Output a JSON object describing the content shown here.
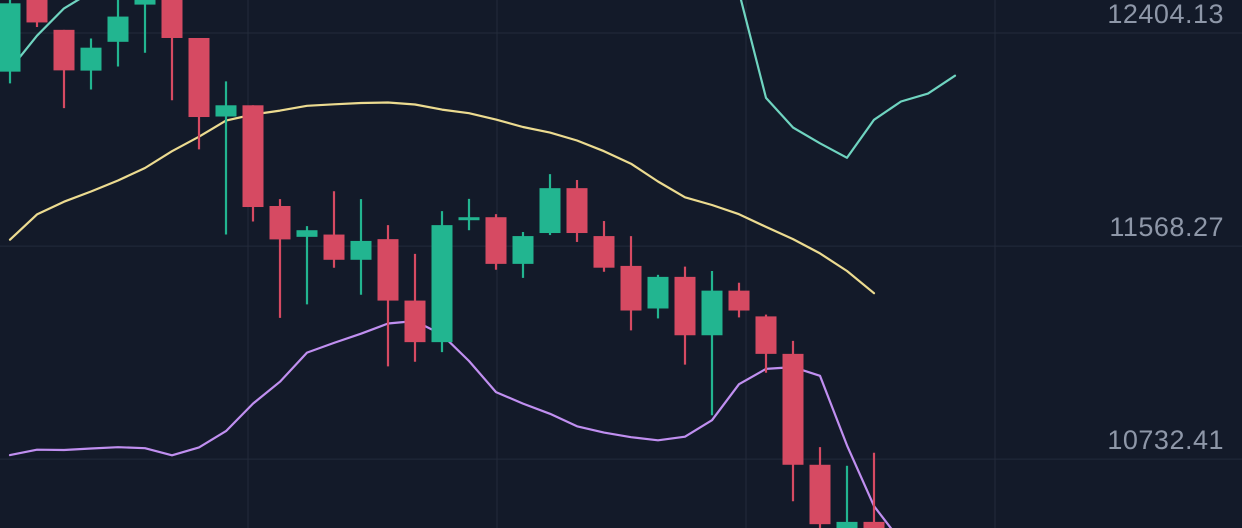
{
  "chart_data": {
    "type": "candlestick",
    "y_axis": {
      "range": [
        10384,
        12455
      ],
      "tick_labels": [
        "12404.13",
        "11568.27",
        "10732.41"
      ],
      "ticks": [
        12404.13,
        11568.27,
        10732.41
      ]
    },
    "grid": true,
    "colors": {
      "background": "#131a29",
      "grid": "#232b3b",
      "up": "#22b590",
      "down": "#d64a62",
      "upper_band": "#6fd4c0",
      "middle_band": "#ecdb90",
      "lower_band": "#c08ff0",
      "axis_text": "#8e97a8"
    },
    "candles": [
      {
        "dir": "up",
        "open": 12174,
        "close": 12442,
        "high": 12460,
        "low": 12128
      },
      {
        "dir": "down",
        "open": 12460,
        "close": 12367,
        "high": 12460,
        "low": 12349
      },
      {
        "dir": "down",
        "open": 12338,
        "close": 12179,
        "high": 12338,
        "low": 12031
      },
      {
        "dir": "up",
        "open": 12178,
        "close": 12268,
        "high": 12304,
        "low": 12104
      },
      {
        "dir": "up",
        "open": 12291,
        "close": 12390,
        "high": 12460,
        "low": 12194
      },
      {
        "dir": "up",
        "open": 12437,
        "close": 12459,
        "high": 12460,
        "low": 12248
      },
      {
        "dir": "down",
        "open": 12460,
        "close": 12306,
        "high": 12460,
        "low": 12062
      },
      {
        "dir": "down",
        "open": 12306,
        "close": 11996,
        "high": 12306,
        "low": 11869
      },
      {
        "dir": "up",
        "open": 11998,
        "close": 12042,
        "high": 12136,
        "low": 11535
      },
      {
        "dir": "down",
        "open": 12042,
        "close": 11643,
        "high": 12042,
        "low": 11586
      },
      {
        "dir": "down",
        "open": 11647,
        "close": 11516,
        "high": 11674,
        "low": 11208
      },
      {
        "dir": "up",
        "open": 11526,
        "close": 11552,
        "high": 11568,
        "low": 11261
      },
      {
        "dir": "down",
        "open": 11535,
        "close": 11436,
        "high": 11705,
        "low": 11405
      },
      {
        "dir": "up",
        "open": 11436,
        "close": 11510,
        "high": 11674,
        "low": 11299
      },
      {
        "dir": "down",
        "open": 11517,
        "close": 11276,
        "high": 11572,
        "low": 11018
      },
      {
        "dir": "down",
        "open": 11276,
        "close": 11113,
        "high": 11459,
        "low": 11036
      },
      {
        "dir": "up",
        "open": 11113,
        "close": 11572,
        "high": 11627,
        "low": 11074
      },
      {
        "dir": "up",
        "open": 11595,
        "close": 11603,
        "high": 11675,
        "low": 11552
      },
      {
        "dir": "down",
        "open": 11603,
        "close": 11420,
        "high": 11615,
        "low": 11397
      },
      {
        "dir": "up",
        "open": 11420,
        "close": 11529,
        "high": 11545,
        "low": 11365
      },
      {
        "dir": "up",
        "open": 11541,
        "close": 11717,
        "high": 11772,
        "low": 11533
      },
      {
        "dir": "down",
        "open": 11717,
        "close": 11541,
        "high": 11749,
        "low": 11506
      },
      {
        "dir": "down",
        "open": 11529,
        "close": 11405,
        "high": 11588,
        "low": 11389
      },
      {
        "dir": "down",
        "open": 11412,
        "close": 11237,
        "high": 11529,
        "low": 11159
      },
      {
        "dir": "up",
        "open": 11245,
        "close": 11369,
        "high": 11377,
        "low": 11206
      },
      {
        "dir": "down",
        "open": 11369,
        "close": 11140,
        "high": 11409,
        "low": 11025
      },
      {
        "dir": "up",
        "open": 11140,
        "close": 11315,
        "high": 11392,
        "low": 10826
      },
      {
        "dir": "down",
        "open": 11315,
        "close": 11237,
        "high": 11346,
        "low": 11210
      },
      {
        "dir": "down",
        "open": 11214,
        "close": 11067,
        "high": 11221,
        "low": 10993
      },
      {
        "dir": "down",
        "open": 11067,
        "close": 10632,
        "high": 11118,
        "low": 10489
      },
      {
        "dir": "down",
        "open": 10632,
        "close": 10399,
        "high": 10701,
        "low": 10384
      },
      {
        "dir": "up",
        "open": 10384,
        "close": 10408,
        "high": 10628,
        "low": 10384
      },
      {
        "dir": "down",
        "open": 10408,
        "close": 10384,
        "high": 10679,
        "low": 10384
      }
    ],
    "bands": {
      "upper_a": [
        12183,
        12315,
        12422,
        12486
      ],
      "upper_b": [
        12486,
        12071,
        11955,
        11893,
        11836,
        11985,
        12057,
        12088,
        12158
      ],
      "middle": [
        11515,
        11614,
        11664,
        11704,
        11747,
        11796,
        11862,
        11919,
        11982,
        12006,
        12021,
        12040,
        12046,
        12051,
        12053,
        12045,
        12025,
        12011,
        11986,
        11957,
        11935,
        11904,
        11862,
        11813,
        11743,
        11681,
        11651,
        11615,
        11565,
        11517,
        11461,
        11392,
        11305
      ],
      "lower": [
        10670,
        10691,
        10690,
        10696,
        10701,
        10697,
        10669,
        10700,
        10764,
        10872,
        10958,
        11072,
        11110,
        11146,
        11186,
        11196,
        11142,
        11039,
        10917,
        10872,
        10832,
        10783,
        10758,
        10740,
        10728,
        10742,
        10807,
        10948,
        11008,
        11015,
        10981,
        10708,
        10470,
        10332
      ]
    }
  }
}
